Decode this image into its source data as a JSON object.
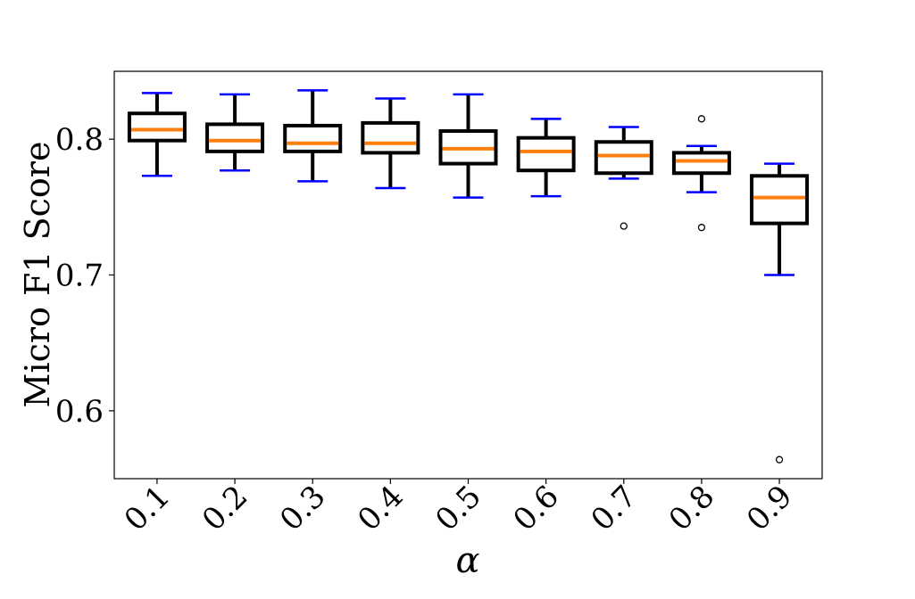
{
  "chart_data": {
    "type": "box",
    "xlabel": "α",
    "ylabel": "Micro F1 Score",
    "ylim": [
      0.55,
      0.85
    ],
    "yticks": [
      0.6,
      0.7,
      0.8
    ],
    "ytick_labels": [
      "0.6",
      "0.7",
      "0.8"
    ],
    "categories": [
      "0.1",
      "0.2",
      "0.3",
      "0.4",
      "0.5",
      "0.6",
      "0.7",
      "0.8",
      "0.9"
    ],
    "boxes": [
      {
        "whisker_low": 0.773,
        "q1": 0.799,
        "median": 0.807,
        "q3": 0.819,
        "whisker_high": 0.834,
        "outliers": []
      },
      {
        "whisker_low": 0.777,
        "q1": 0.791,
        "median": 0.799,
        "q3": 0.811,
        "whisker_high": 0.833,
        "outliers": []
      },
      {
        "whisker_low": 0.769,
        "q1": 0.791,
        "median": 0.797,
        "q3": 0.81,
        "whisker_high": 0.836,
        "outliers": []
      },
      {
        "whisker_low": 0.764,
        "q1": 0.79,
        "median": 0.797,
        "q3": 0.812,
        "whisker_high": 0.83,
        "outliers": []
      },
      {
        "whisker_low": 0.757,
        "q1": 0.782,
        "median": 0.793,
        "q3": 0.806,
        "whisker_high": 0.833,
        "outliers": []
      },
      {
        "whisker_low": 0.758,
        "q1": 0.777,
        "median": 0.791,
        "q3": 0.801,
        "whisker_high": 0.815,
        "outliers": []
      },
      {
        "whisker_low": 0.771,
        "q1": 0.775,
        "median": 0.788,
        "q3": 0.798,
        "whisker_high": 0.809,
        "outliers": [
          0.736
        ]
      },
      {
        "whisker_low": 0.761,
        "q1": 0.775,
        "median": 0.784,
        "q3": 0.79,
        "whisker_high": 0.795,
        "outliers": [
          0.815,
          0.735
        ]
      },
      {
        "whisker_low": 0.7,
        "q1": 0.738,
        "median": 0.757,
        "q3": 0.773,
        "whisker_high": 0.782,
        "outliers": [
          0.564
        ]
      }
    ],
    "colors": {
      "box": "#000000",
      "median": "#ff7f0e",
      "cap": "#0000ff"
    },
    "grid": false,
    "legend": "none"
  }
}
